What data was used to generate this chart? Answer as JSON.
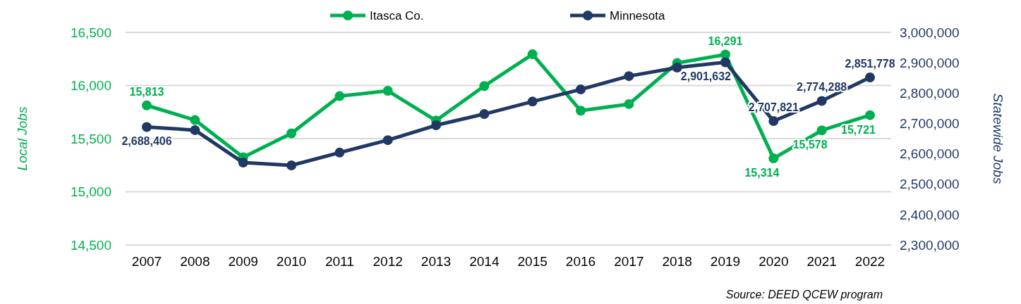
{
  "chart_data": {
    "type": "line",
    "categories": [
      "2007",
      "2008",
      "2009",
      "2010",
      "2011",
      "2012",
      "2013",
      "2014",
      "2015",
      "2016",
      "2017",
      "2018",
      "2019",
      "2020",
      "2021",
      "2022"
    ],
    "series": [
      {
        "name": "Itasca Co.",
        "color": "#00b050",
        "values": [
          15813,
          15675,
          15325,
          15550,
          15900,
          15950,
          15670,
          15995,
          16294,
          15763,
          15825,
          16212,
          16291,
          15314,
          15578,
          15721
        ],
        "value_labels": [
          "15,813",
          null,
          null,
          null,
          null,
          null,
          null,
          null,
          null,
          null,
          null,
          null,
          "16,291",
          "15,314",
          "15,578",
          "15,721"
        ]
      },
      {
        "name": "Minnesota",
        "color": "#203864",
        "axis": "y2",
        "values": [
          2688406,
          2678000,
          2571000,
          2562000,
          2604000,
          2645000,
          2694000,
          2731000,
          2772000,
          2812000,
          2856000,
          2884000,
          2901632,
          2707821,
          2774288,
          2851778
        ],
        "value_labels": [
          "2,688,406",
          null,
          null,
          null,
          null,
          null,
          null,
          null,
          null,
          null,
          null,
          null,
          "2,901,632",
          "2,707,821",
          "2,774,288",
          "2,851,778"
        ]
      }
    ],
    "ylabel": "Local Jobs",
    "y2label": "Statewide Jobs",
    "ylim": [
      14500,
      16500
    ],
    "yticks": [
      {
        "value": 14500,
        "label": "14,500"
      },
      {
        "value": 15000,
        "label": "15,000"
      },
      {
        "value": 15500,
        "label": "15,500"
      },
      {
        "value": 16000,
        "label": "16,000"
      },
      {
        "value": 16500,
        "label": "16,500"
      }
    ],
    "y2lim": [
      2300000,
      3000000
    ],
    "y2ticks": [
      {
        "value": 2300000,
        "label": "2,300,000"
      },
      {
        "value": 2400000,
        "label": "2,400,000"
      },
      {
        "value": 2500000,
        "label": "2,500,000"
      },
      {
        "value": 2600000,
        "label": "2,600,000"
      },
      {
        "value": 2700000,
        "label": "2,700,000"
      },
      {
        "value": 2800000,
        "label": "2,800,000"
      },
      {
        "value": 2900000,
        "label": "2,900,000"
      },
      {
        "value": 3000000,
        "label": "3,000,000"
      }
    ],
    "grid": "y",
    "legend": "top",
    "marker": "circle",
    "line_style": "solid",
    "annotations": [
      "Source: DEED QCEW program"
    ]
  }
}
